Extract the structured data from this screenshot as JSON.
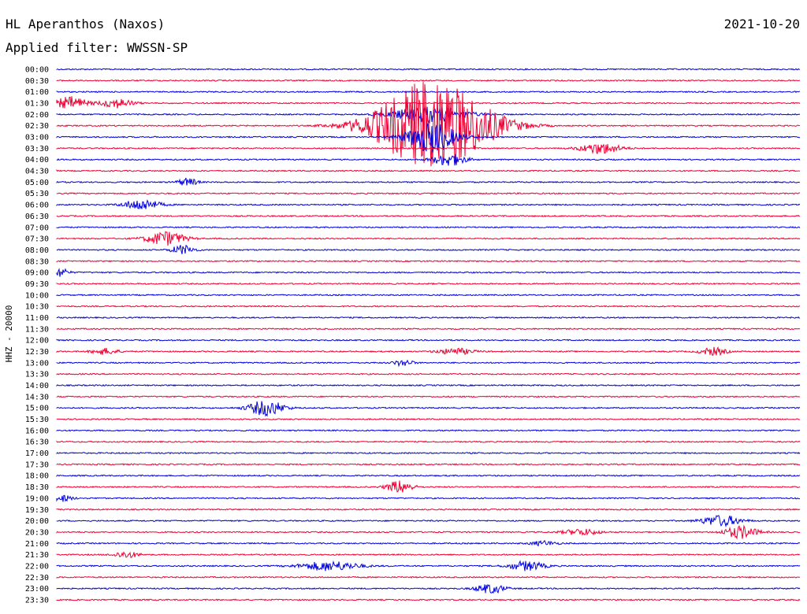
{
  "header": {
    "station": "HL Aperanthos (Naxos)",
    "date": "2021-10-20",
    "filter": "Applied filter: WWSSN-SP"
  },
  "chart_data": {
    "type": "line",
    "title": "HL Aperanthos (Naxos)",
    "ylabel": "HHZ - 20000",
    "row_labels": [
      "00:00",
      "00:30",
      "01:00",
      "01:30",
      "02:00",
      "02:30",
      "03:00",
      "03:30",
      "04:00",
      "04:30",
      "05:00",
      "05:30",
      "06:00",
      "06:30",
      "07:00",
      "07:30",
      "08:00",
      "08:30",
      "09:00",
      "09:30",
      "10:00",
      "10:30",
      "11:00",
      "11:30",
      "12:00",
      "12:30",
      "13:00",
      "13:30",
      "14:00",
      "14:30",
      "15:00",
      "15:30",
      "16:00",
      "16:30",
      "17:00",
      "17:30",
      "18:00",
      "18:30",
      "19:00",
      "19:30",
      "20:00",
      "20:30",
      "21:00",
      "21:30",
      "22:00",
      "22:30",
      "23:00",
      "23:30"
    ],
    "colors": {
      "even_rows": "#0000dd",
      "odd_rows": "#ee0033"
    },
    "grid": false
  }
}
